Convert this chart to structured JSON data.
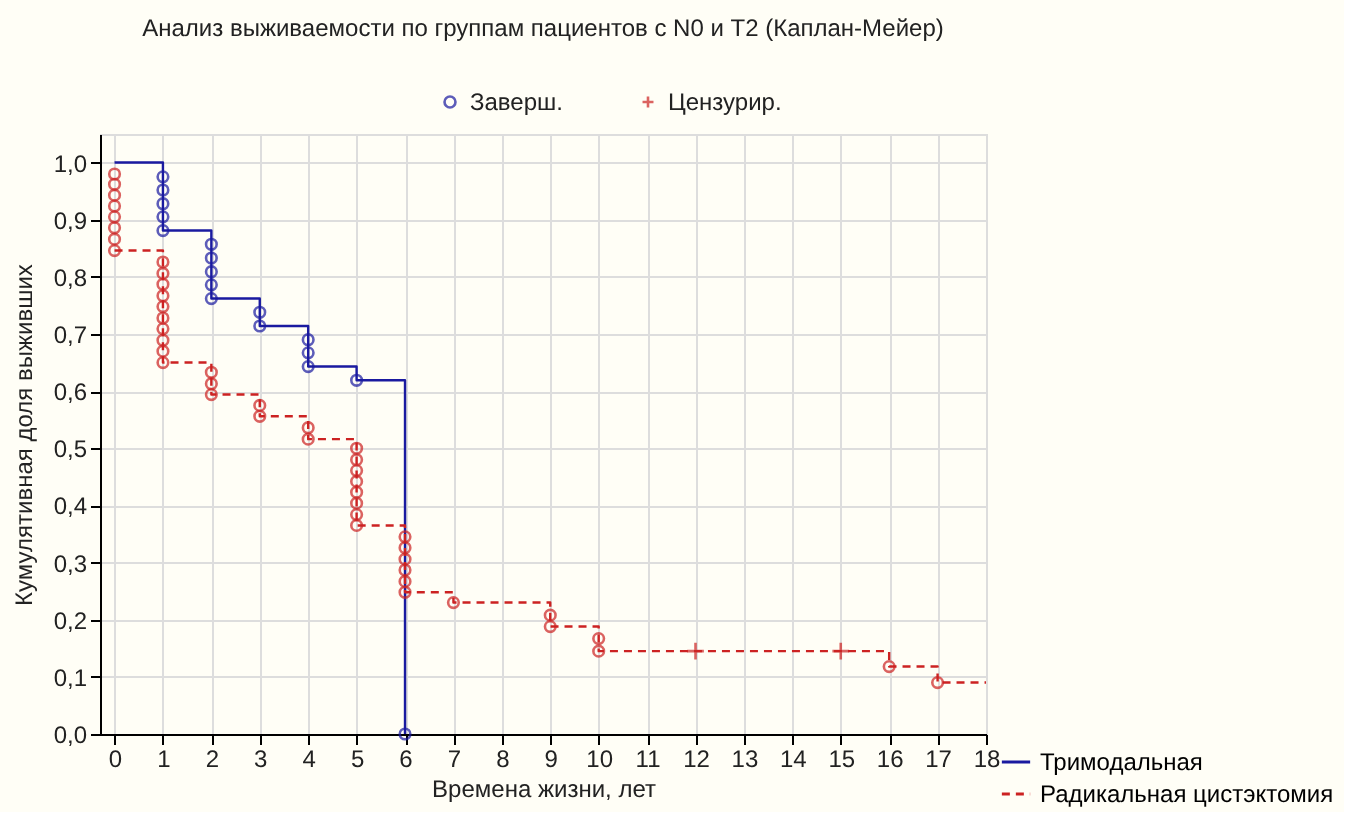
{
  "chart_data": {
    "type": "step",
    "title": "Анализ выживаемости по группам пациентов с N0 и T2 (Каплан-Мейер)",
    "xlabel": "Времена жизни, лет",
    "ylabel": "Кумулятивная доля выживших",
    "xlim": [
      -0.3,
      18
    ],
    "ylim": [
      0,
      1.05
    ],
    "xticks": [
      0,
      1,
      2,
      3,
      4,
      5,
      6,
      7,
      8,
      9,
      10,
      11,
      12,
      13,
      14,
      15,
      16,
      17,
      18
    ],
    "yticks": [
      {
        "value": 0,
        "label": "0,0"
      },
      {
        "value": 0.1,
        "label": "0,1"
      },
      {
        "value": 0.2,
        "label": "0,2"
      },
      {
        "value": 0.3,
        "label": "0,3"
      },
      {
        "value": 0.4,
        "label": "0,4"
      },
      {
        "value": 0.5,
        "label": "0,5"
      },
      {
        "value": 0.6,
        "label": "0,6"
      },
      {
        "value": 0.7,
        "label": "0,7"
      },
      {
        "value": 0.8,
        "label": "0,8"
      },
      {
        "value": 0.9,
        "label": "0,9"
      },
      {
        "value": 1.0,
        "label": "1,0"
      }
    ],
    "grid": true,
    "legend": "bottom right",
    "series": [
      {
        "name": "Тримодальная",
        "color": "#1a1aa0",
        "line_style": "solid",
        "marker": "none",
        "x": [
          0,
          1,
          2,
          3,
          4,
          5,
          6
        ],
        "values": [
          1.0,
          0.881,
          0.762,
          0.714,
          0.643,
          0.619,
          0.0
        ]
      },
      {
        "name": "Радикальная цистэктомия",
        "color": "#cc2222",
        "line_style": "dashed",
        "marker": "none",
        "x": [
          0,
          1,
          2,
          3,
          4,
          5,
          6,
          7,
          9,
          10,
          16,
          17,
          18
        ],
        "values": [
          0.846,
          0.65,
          0.594,
          0.556,
          0.516,
          0.365,
          0.248,
          0.23,
          0.188,
          0.145,
          0.118,
          0.09,
          0.09
        ]
      },
      {
        "name": "Заверш.",
        "type": "scatter",
        "marker": "circle",
        "color": "#1a1aa0",
        "x": [
          1,
          1,
          1,
          1,
          1,
          2,
          2,
          2,
          2,
          2,
          3,
          3,
          4,
          4,
          4,
          5,
          6
        ],
        "values": [
          0.975,
          0.952,
          0.928,
          0.905,
          0.881,
          0.857,
          0.833,
          0.809,
          0.786,
          0.762,
          0.738,
          0.714,
          0.69,
          0.667,
          0.643,
          0.619,
          0.0
        ]
      },
      {
        "type": "scatter",
        "marker": "circle",
        "color": "#cc2222",
        "x": [
          0,
          0,
          0,
          0,
          0,
          0,
          0,
          0,
          1,
          1,
          1,
          1,
          1,
          1,
          1,
          1,
          1,
          1,
          2,
          2,
          2,
          3,
          3,
          4,
          4,
          5,
          5,
          5,
          5,
          5,
          5,
          5,
          5,
          6,
          6,
          6,
          6,
          6,
          6,
          7,
          9,
          9,
          10,
          10,
          16,
          17
        ],
        "values": [
          0.98,
          0.962,
          0.943,
          0.924,
          0.905,
          0.886,
          0.866,
          0.846,
          0.826,
          0.806,
          0.787,
          0.767,
          0.748,
          0.728,
          0.709,
          0.689,
          0.67,
          0.65,
          0.633,
          0.613,
          0.594,
          0.575,
          0.556,
          0.536,
          0.516,
          0.5,
          0.48,
          0.461,
          0.442,
          0.423,
          0.404,
          0.384,
          0.365,
          0.345,
          0.326,
          0.306,
          0.287,
          0.267,
          0.248,
          0.23,
          0.208,
          0.188,
          0.167,
          0.145,
          0.118,
          0.09
        ]
      },
      {
        "name": "Цензурир.",
        "type": "scatter",
        "marker": "cross",
        "color": "#cc2222",
        "x": [
          12,
          15
        ],
        "values": [
          0.145,
          0.145
        ]
      }
    ]
  }
}
